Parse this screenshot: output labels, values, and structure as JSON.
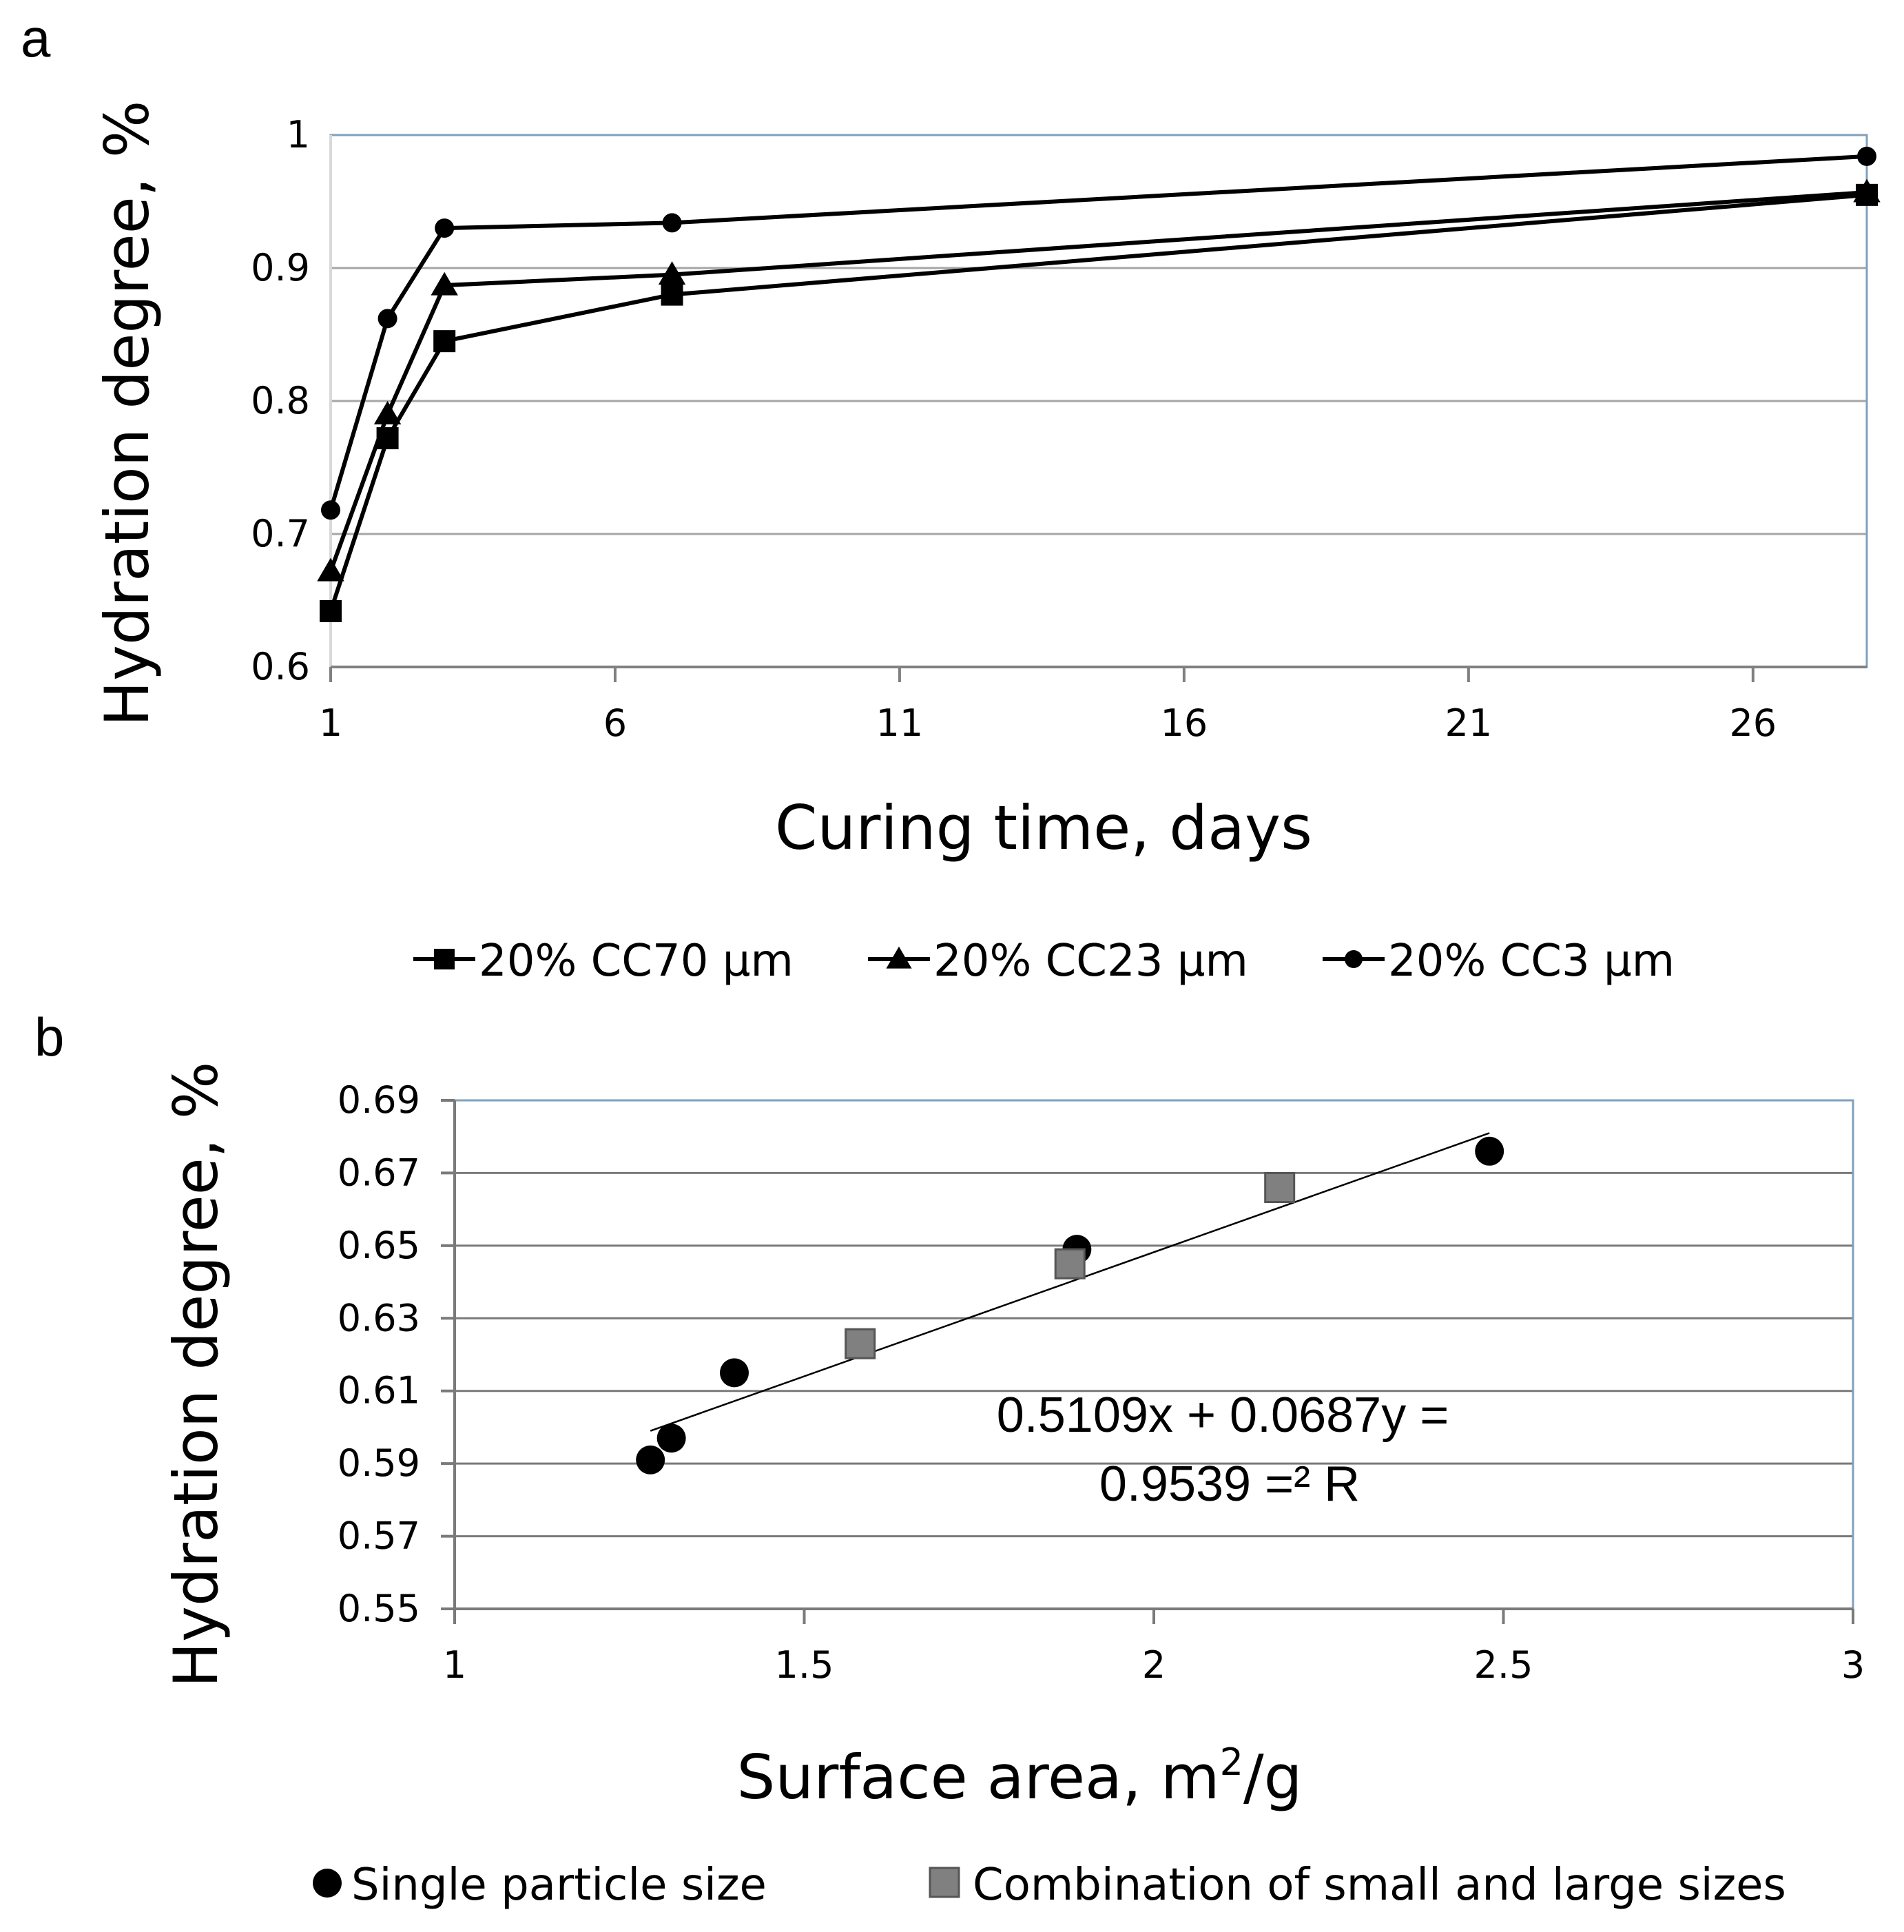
{
  "chart_data": [
    {
      "panel": "a",
      "type": "line",
      "title": "",
      "xlabel": "Curing time, days",
      "ylabel": "Hydration degree, %",
      "xlim": [
        1,
        28
      ],
      "ylim": [
        0.6,
        1.0
      ],
      "x_ticks": [
        1,
        6,
        11,
        16,
        21,
        26
      ],
      "y_ticks": [
        0.6,
        0.7,
        0.8,
        0.9,
        1.0
      ],
      "x_tick_labels": [
        "1",
        "6",
        "11",
        "16",
        "21",
        "26"
      ],
      "y_tick_labels": [
        "0.6",
        "0.7",
        "0.8",
        "0.9",
        "1"
      ],
      "grid": true,
      "legend_position": "bottom",
      "series": [
        {
          "name": "20% CC70 µm",
          "marker": "square",
          "x": [
            1,
            2,
            3,
            7,
            28
          ],
          "values": [
            0.642,
            0.772,
            0.845,
            0.88,
            0.955
          ]
        },
        {
          "name": "20% CC23 µm",
          "marker": "triangle",
          "x": [
            1,
            2,
            3,
            7,
            28
          ],
          "values": [
            0.672,
            0.79,
            0.887,
            0.895,
            0.957
          ]
        },
        {
          "name": "20% CC3 µm",
          "marker": "circle",
          "x": [
            1,
            2,
            3,
            7,
            28
          ],
          "values": [
            0.718,
            0.862,
            0.93,
            0.934,
            0.984
          ]
        }
      ]
    },
    {
      "panel": "b",
      "type": "scatter",
      "title": "",
      "xlabel": "Surface area, m²/g",
      "xlabel_main": "Surface area, m",
      "xlabel_sup": "2",
      "xlabel_tail": "/g",
      "ylabel": "Hydration degree, %",
      "xlim": [
        1,
        3
      ],
      "ylim": [
        0.55,
        0.69
      ],
      "x_ticks": [
        1,
        1.5,
        2,
        2.5,
        3
      ],
      "y_ticks": [
        0.55,
        0.57,
        0.59,
        0.61,
        0.63,
        0.65,
        0.67,
        0.69
      ],
      "x_tick_labels": [
        "1",
        "1.5",
        "2",
        "2.5",
        "3"
      ],
      "y_tick_labels": [
        "0.55",
        "0.57",
        "0.59",
        "0.61",
        "0.63",
        "0.65",
        "0.67",
        "0.69"
      ],
      "grid": true,
      "legend_position": "bottom",
      "series": [
        {
          "name": "Single particle size",
          "marker": "circle",
          "color": "#000000",
          "x": [
            1.28,
            1.31,
            1.4,
            1.89,
            2.48
          ],
          "values": [
            0.591,
            0.597,
            0.615,
            0.649,
            0.676
          ]
        },
        {
          "name": "Combination of small and large sizes",
          "marker": "square",
          "color": "#808080",
          "x": [
            1.58,
            1.88,
            2.18
          ],
          "values": [
            0.623,
            0.645,
            0.666
          ]
        }
      ],
      "trendline": {
        "x": [
          1.28,
          2.48
        ],
        "values": [
          0.599,
          0.681
        ]
      },
      "annotation_lines": [
        "0.5109x + 0.0687y =",
        "0.9539 =² R"
      ]
    }
  ]
}
